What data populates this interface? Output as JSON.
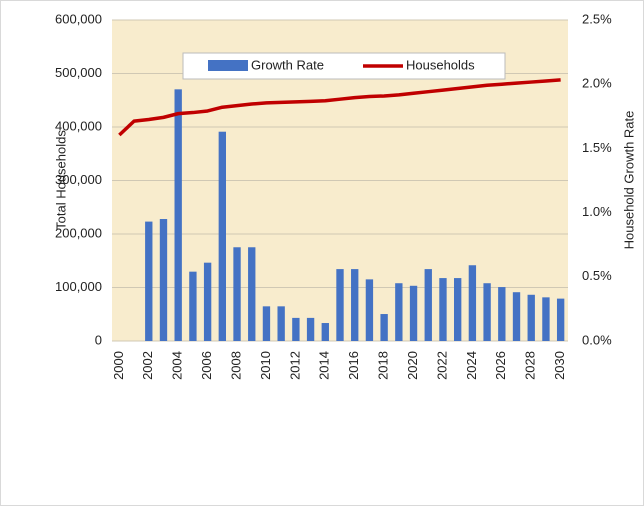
{
  "chart_data": {
    "type": "bar_line",
    "y_label": "Total Households",
    "y2_label": "Household Growth Rate",
    "categories": [
      "2000",
      null,
      "2002",
      null,
      "2004",
      null,
      "2006",
      null,
      "2008",
      null,
      "2010",
      null,
      "2012",
      null,
      "2014",
      null,
      "2016",
      null,
      "2018",
      null,
      "2020",
      null,
      "2022",
      null,
      "2024",
      null,
      "2026",
      null,
      "2028",
      null,
      "2030"
    ],
    "series": [
      {
        "name": "Growth Rate",
        "color": "#4472c4",
        "type": "bar",
        "axis": "y2",
        "values": [
          null,
          null,
          0.93,
          0.95,
          1.96,
          0.54,
          0.61,
          1.63,
          0.73,
          0.73,
          0.27,
          0.27,
          0.18,
          0.18,
          0.14,
          0.56,
          0.56,
          0.48,
          0.21,
          0.45,
          0.43,
          0.56,
          0.49,
          0.49,
          0.59,
          0.45,
          0.42,
          0.38,
          0.36,
          0.34,
          0.33
        ]
      },
      {
        "name": "Households",
        "color": "#c00000",
        "type": "line",
        "axis": "y",
        "values": [
          385000,
          411000,
          414000,
          418000,
          425000,
          427000,
          430000,
          437000,
          440000,
          443000,
          445000,
          446000,
          447000,
          448000,
          449000,
          452000,
          455000,
          457000,
          458000,
          460000,
          463000,
          466000,
          469000,
          472000,
          475000,
          478000,
          480000,
          482000,
          484000,
          486000,
          488000
        ]
      }
    ],
    "ylim": [
      0,
      600000
    ],
    "yticks": [
      0,
      {
        "value": 100000,
        "label": "100,000"
      },
      {
        "value": 200000,
        "label": "200,000"
      },
      {
        "value": 300000,
        "label": "300,000"
      },
      {
        "value": 400000,
        "label": "400,000"
      },
      {
        "value": 500000,
        "label": "500,000"
      },
      {
        "value": 600000,
        "label": "600,000"
      }
    ],
    "y2lim": [
      0,
      2.5
    ],
    "y2ticks": [
      {
        "value": 0,
        "label": "0.0%"
      },
      {
        "value": 0.5,
        "label": "0.5%"
      },
      {
        "value": 1.0,
        "label": "1.0%"
      },
      {
        "value": 1.5,
        "label": "1.5%"
      },
      {
        "value": 2.0,
        "label": "2.0%"
      },
      {
        "value": 2.5,
        "label": "2.5%"
      }
    ],
    "grid": true,
    "legend": "top"
  }
}
